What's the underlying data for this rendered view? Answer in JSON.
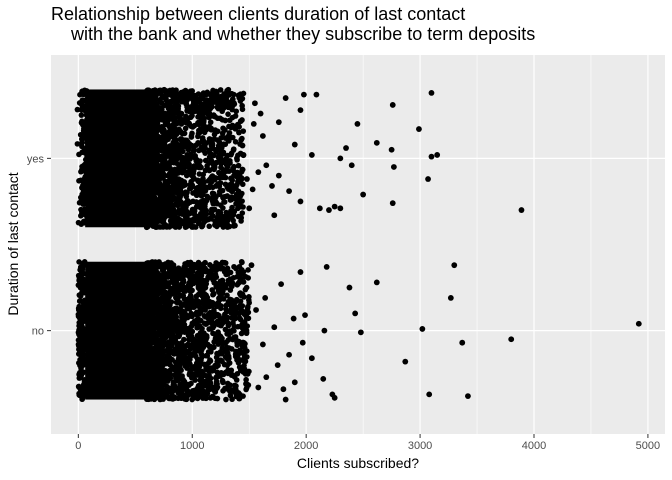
{
  "chart_data": {
    "type": "scatter",
    "title_line1": "Relationship between clients duration of last contact",
    "title_line2": "with the bank and whether they subscribe to term deposits",
    "xlabel": "Clients subscribed?",
    "ylabel": "Duration of last contact",
    "xlim": [
      -240,
      5150
    ],
    "x_ticks": [
      0,
      1000,
      2000,
      3000,
      4000,
      5000
    ],
    "x_tick_labels": [
      "0",
      "1000",
      "2000",
      "3000",
      "4000",
      "5000"
    ],
    "categories": [
      "no",
      "yes"
    ],
    "jitter": 0.4,
    "grid": true,
    "background": "#ebebeb",
    "point_color": "#000000",
    "series": [
      {
        "category": "yes",
        "points": [
          [
            3100,
            0.38
          ],
          [
            2760,
            0.31
          ],
          [
            2450,
            0.2
          ],
          [
            2990,
            0.17
          ],
          [
            2620,
            0.09
          ],
          [
            2350,
            0.06
          ],
          [
            2750,
            0.05
          ],
          [
            3100,
            0.01
          ],
          [
            3150,
            0.02
          ],
          [
            2400,
            -0.04
          ],
          [
            2300,
            0.0
          ],
          [
            2050,
            0.02
          ],
          [
            2770,
            -0.05
          ],
          [
            3070,
            -0.12
          ],
          [
            2500,
            -0.21
          ],
          [
            2760,
            -0.26
          ],
          [
            3890,
            -0.3
          ],
          [
            2250,
            -0.28
          ],
          [
            2300,
            -0.29
          ],
          [
            2200,
            -0.3
          ],
          [
            2120,
            -0.29
          ],
          [
            1950,
            -0.25
          ],
          [
            1850,
            -0.19
          ],
          [
            1760,
            -0.1
          ],
          [
            1700,
            -0.16
          ],
          [
            1650,
            -0.04
          ],
          [
            1900,
            0.08
          ],
          [
            1820,
            0.35
          ],
          [
            1980,
            0.37
          ],
          [
            2090,
            0.37
          ],
          [
            1950,
            0.28
          ],
          [
            1760,
            0.21
          ],
          [
            1600,
            0.26
          ],
          [
            1550,
            0.32
          ],
          [
            1540,
            0.2
          ],
          [
            1620,
            0.13
          ],
          [
            1580,
            -0.08
          ],
          [
            1530,
            -0.18
          ],
          [
            1500,
            -0.29
          ],
          [
            1720,
            -0.33
          ],
          [
            1450,
            0.02
          ],
          [
            1480,
            -0.12
          ],
          [
            1410,
            0.15
          ],
          [
            1390,
            -0.24
          ],
          [
            1350,
            0.3
          ],
          [
            1320,
            -0.02
          ],
          [
            1290,
            0.22
          ],
          [
            1270,
            -0.34
          ],
          [
            1240,
            0.09
          ],
          [
            1210,
            -0.16
          ],
          [
            1180,
            0.36
          ],
          [
            1150,
            -0.07
          ],
          [
            1130,
            0.27
          ],
          [
            1110,
            -0.28
          ],
          [
            1090,
            0.05
          ]
        ]
      },
      {
        "category": "no",
        "points": [
          [
            4920,
            0.04
          ],
          [
            3800,
            -0.05
          ],
          [
            3370,
            -0.07
          ],
          [
            3300,
            0.38
          ],
          [
            3270,
            0.19
          ],
          [
            3020,
            0.01
          ],
          [
            2870,
            -0.18
          ],
          [
            3080,
            -0.37
          ],
          [
            3420,
            -0.38
          ],
          [
            2620,
            0.28
          ],
          [
            2480,
            -0.01
          ],
          [
            2430,
            0.1
          ],
          [
            2380,
            0.25
          ],
          [
            2250,
            -0.39
          ],
          [
            2230,
            -0.37
          ],
          [
            2180,
            0.37
          ],
          [
            2160,
            0.0
          ],
          [
            2150,
            -0.28
          ],
          [
            2050,
            -0.16
          ],
          [
            1990,
            0.09
          ],
          [
            1970,
            -0.07
          ],
          [
            1950,
            0.34
          ],
          [
            1900,
            -0.3
          ],
          [
            1890,
            0.07
          ],
          [
            1850,
            -0.14
          ],
          [
            1820,
            -0.4
          ],
          [
            1800,
            -0.34
          ],
          [
            1780,
            0.27
          ],
          [
            1750,
            -0.2
          ],
          [
            1720,
            0.02
          ],
          [
            1650,
            -0.27
          ],
          [
            1640,
            0.19
          ],
          [
            1620,
            -0.08
          ],
          [
            1580,
            -0.33
          ],
          [
            1560,
            0.12
          ],
          [
            1520,
            0.38
          ],
          [
            1490,
            -0.24
          ],
          [
            1460,
            0.05
          ],
          [
            1430,
            0.29
          ],
          [
            1400,
            -0.13
          ],
          [
            1380,
            -0.36
          ],
          [
            1350,
            0.15
          ],
          [
            1320,
            -0.02
          ],
          [
            1300,
            0.35
          ],
          [
            1270,
            -0.3
          ],
          [
            1240,
            0.22
          ],
          [
            1220,
            -0.18
          ],
          [
            1190,
            0.08
          ],
          [
            1160,
            -0.39
          ],
          [
            1140,
            0.31
          ],
          [
            1120,
            -0.05
          ],
          [
            1100,
            0.18
          ],
          [
            1080,
            -0.25
          ]
        ]
      }
    ]
  }
}
